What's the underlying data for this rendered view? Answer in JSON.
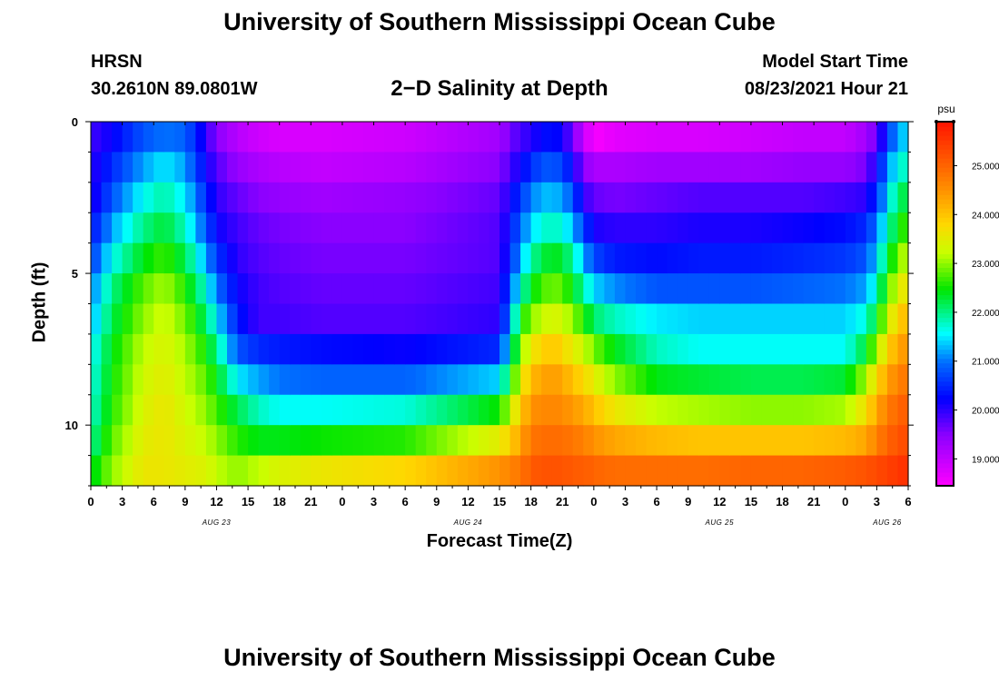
{
  "header": {
    "title": "University of Southern Mississippi Ocean Cube",
    "station": "HRSN",
    "coordinates": "30.2610N  89.0801W",
    "plot_title": "2−D Salinity at Depth",
    "model_start_label": "Model Start Time",
    "model_start_value": "08/23/2021 Hour 21"
  },
  "footer": {
    "title": "University of Southern Mississippi Ocean Cube"
  },
  "chart_data": {
    "type": "heatmap",
    "title": "2−D Salinity at Depth",
    "xlabel": "Forecast Time(Z)",
    "ylabel": "Depth (ft)",
    "units": "psu",
    "x_range_hours": [
      0,
      78
    ],
    "x_tick_labels": [
      "0",
      "3",
      "6",
      "9",
      "12",
      "15",
      "18",
      "21",
      "0",
      "3",
      "6",
      "9",
      "12",
      "15",
      "18",
      "21",
      "0",
      "3",
      "6",
      "9",
      "12",
      "15",
      "18",
      "21",
      "0",
      "3",
      "6"
    ],
    "date_labels": [
      {
        "label": "AUG 23",
        "hour": 12
      },
      {
        "label": "AUG 24",
        "hour": 36
      },
      {
        "label": "AUG 25",
        "hour": 60
      },
      {
        "label": "AUG 26",
        "hour": 76
      }
    ],
    "y_range": [
      0,
      12
    ],
    "y_tick_labels": [
      "0",
      "5",
      "10"
    ],
    "y_ticks": [
      0,
      5,
      10
    ],
    "colorbar_ticks": [
      "19.000",
      "20.000",
      "21.000",
      "22.000",
      "23.000",
      "24.000",
      "25.000"
    ],
    "colorbar_range": [
      18.45,
      25.9
    ],
    "depth_rows": [
      0.5,
      1.5,
      2.5,
      3.5,
      4.5,
      5.5,
      6.5,
      7.5,
      8.5,
      9.5,
      10.5,
      11.5
    ],
    "profile_times": [
      0,
      2,
      5,
      7,
      9,
      11,
      12,
      14,
      16,
      18,
      22,
      30,
      39,
      41,
      42,
      43,
      44,
      45,
      46,
      47,
      48,
      50,
      54,
      58,
      63,
      68,
      72,
      74,
      75,
      76,
      77,
      78
    ],
    "profiles": [
      [
        19.9,
        20.0,
        20.0,
        20.3,
        20.6,
        21.0,
        21.2,
        21.5,
        21.6,
        21.7,
        21.9,
        22.3
      ],
      [
        20.2,
        20.5,
        20.8,
        21.2,
        21.6,
        22.0,
        22.2,
        22.4,
        22.5,
        22.6,
        22.8,
        23.0
      ],
      [
        20.8,
        21.2,
        21.6,
        22.0,
        22.4,
        22.8,
        23.0,
        23.2,
        23.3,
        23.4,
        23.5,
        23.6
      ],
      [
        21.0,
        21.5,
        21.9,
        22.3,
        22.7,
        23.1,
        23.3,
        23.4,
        23.5,
        23.6,
        23.6,
        23.6
      ],
      [
        20.9,
        21.2,
        21.5,
        21.8,
        22.2,
        22.6,
        22.9,
        23.1,
        23.2,
        23.3,
        23.4,
        23.5
      ],
      [
        20.0,
        20.2,
        20.5,
        20.8,
        21.2,
        21.7,
        22.1,
        22.5,
        22.8,
        23.0,
        23.2,
        23.4
      ],
      [
        19.5,
        19.8,
        20.0,
        20.2,
        20.6,
        21.0,
        21.5,
        22.0,
        22.4,
        22.7,
        23.0,
        23.2
      ],
      [
        19.1,
        19.4,
        19.7,
        19.9,
        20.0,
        20.2,
        20.4,
        20.8,
        21.5,
        22.2,
        22.6,
        23.0
      ],
      [
        18.9,
        19.2,
        19.5,
        19.7,
        19.8,
        19.9,
        19.9,
        20.5,
        21.2,
        21.8,
        22.4,
        23.2
      ],
      [
        18.8,
        19.1,
        19.4,
        19.6,
        19.7,
        19.8,
        19.9,
        20.4,
        21.0,
        21.6,
        22.4,
        23.4
      ],
      [
        18.8,
        19.0,
        19.3,
        19.5,
        19.6,
        19.7,
        19.8,
        20.3,
        20.9,
        21.6,
        22.5,
        23.6
      ],
      [
        18.9,
        19.1,
        19.4,
        19.5,
        19.6,
        19.7,
        19.8,
        20.2,
        20.9,
        21.7,
        22.6,
        23.8
      ],
      [
        19.3,
        19.5,
        19.7,
        19.8,
        19.8,
        19.9,
        20.0,
        20.5,
        21.4,
        22.5,
        23.5,
        24.5
      ],
      [
        19.9,
        20.2,
        20.6,
        20.9,
        21.2,
        21.7,
        22.4,
        22.9,
        23.4,
        23.9,
        24.3,
        24.8
      ],
      [
        20.0,
        20.5,
        21.0,
        21.4,
        21.9,
        22.4,
        23.0,
        23.6,
        24.1,
        24.5,
        24.8,
        25.1
      ],
      [
        20.3,
        20.8,
        21.3,
        21.7,
        22.2,
        22.7,
        23.2,
        23.8,
        24.3,
        24.6,
        24.9,
        25.2
      ],
      [
        20.3,
        20.8,
        21.3,
        21.8,
        22.4,
        22.9,
        23.4,
        24.0,
        24.4,
        24.6,
        24.9,
        25.2
      ],
      [
        20.2,
        20.7,
        21.2,
        21.7,
        22.3,
        22.8,
        23.3,
        23.8,
        24.3,
        24.6,
        24.9,
        25.2
      ],
      [
        19.6,
        20.2,
        20.8,
        21.3,
        21.9,
        22.4,
        23.0,
        23.5,
        24.0,
        24.4,
        24.8,
        25.1
      ],
      [
        19.0,
        19.5,
        20.0,
        20.7,
        21.3,
        21.9,
        22.6,
        23.3,
        23.8,
        24.3,
        24.7,
        25.1
      ],
      [
        18.5,
        19.2,
        19.7,
        20.1,
        20.7,
        21.4,
        22.1,
        22.9,
        23.5,
        24.0,
        24.5,
        25.0
      ],
      [
        18.7,
        19.2,
        19.6,
        20.0,
        20.4,
        21.1,
        21.8,
        22.4,
        23.0,
        23.6,
        24.3,
        24.9
      ],
      [
        18.8,
        19.3,
        19.7,
        20.0,
        20.3,
        20.8,
        21.5,
        21.8,
        22.4,
        23.2,
        24.1,
        24.9
      ],
      [
        18.8,
        19.3,
        19.8,
        20.1,
        20.4,
        20.8,
        21.4,
        21.6,
        22.3,
        23.1,
        24.0,
        24.9
      ],
      [
        18.9,
        19.3,
        19.8,
        20.1,
        20.4,
        20.8,
        21.4,
        21.6,
        22.2,
        23.0,
        24.0,
        25.0
      ],
      [
        19.0,
        19.4,
        19.8,
        20.2,
        20.5,
        20.9,
        21.4,
        21.6,
        22.2,
        23.0,
        24.0,
        25.0
      ],
      [
        19.0,
        19.4,
        19.9,
        20.3,
        20.6,
        21.0,
        21.4,
        21.6,
        22.3,
        23.1,
        24.1,
        25.1
      ],
      [
        19.3,
        19.6,
        20.0,
        20.5,
        20.8,
        21.2,
        21.7,
        22.3,
        23.1,
        23.7,
        24.3,
        25.2
      ],
      [
        19.7,
        20.2,
        20.6,
        21.0,
        21.4,
        21.8,
        22.4,
        23.1,
        23.8,
        24.3,
        24.7,
        25.3
      ],
      [
        20.5,
        21.0,
        21.4,
        21.8,
        22.2,
        22.7,
        23.2,
        23.8,
        24.3,
        24.7,
        25.0,
        25.4
      ],
      [
        21.3,
        21.7,
        22.1,
        22.4,
        22.9,
        23.4,
        23.9,
        24.3,
        24.7,
        25.0,
        25.2,
        25.5
      ],
      [
        21.4,
        21.8,
        22.3,
        22.8,
        23.3,
        23.7,
        24.1,
        24.5,
        24.8,
        25.1,
        25.3,
        25.6
      ]
    ]
  }
}
